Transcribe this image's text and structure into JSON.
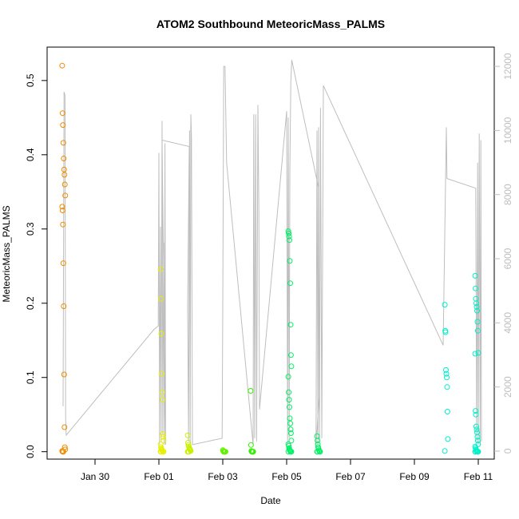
{
  "chart_data": {
    "type": "scatter",
    "title": "ATOM2 Southbound MeteoricMass_PALMS",
    "xlabel": "Date",
    "ylabel": "MeteoricMass_PALMS",
    "x_ticks": [
      "Jan 30",
      "Feb 01",
      "Feb 03",
      "Feb 05",
      "Feb 07",
      "Feb 09",
      "Feb 11"
    ],
    "x_tick_days": [
      30,
      32,
      34,
      36,
      38,
      40,
      42
    ],
    "xlim_days": [
      28.5,
      42.5
    ],
    "y_ticks": [
      "0.0",
      "0.1",
      "0.2",
      "0.3",
      "0.4",
      "0.5"
    ],
    "ylim": [
      -0.01,
      0.545
    ],
    "y2_ticks": [
      "0",
      "2000",
      "4000",
      "6000",
      "8000",
      "10000",
      "12000"
    ],
    "y2lim": [
      -250,
      12600
    ],
    "grid": false,
    "colors": {
      "altitude_line": "#bebebe",
      "right_axis": "#bebebe",
      "axis": "#000000",
      "flight_colors": [
        "#f08c00",
        "#e6f000",
        "#c8f000",
        "#64f000",
        "#32f000",
        "#00f064",
        "#00f0c8"
      ]
    },
    "series": [
      {
        "flight": 1,
        "color": "#f08c00",
        "day": 29.02,
        "values": [
          0.52,
          0.456,
          0.44,
          0.416,
          0.395,
          0.38,
          0.373,
          0.36,
          0.345,
          0.33,
          0.325,
          0.306,
          0.254,
          0.196,
          0.104,
          0.033,
          0.006,
          0.003,
          0.001,
          0.0,
          0.0,
          0.0
        ]
      },
      {
        "flight": 2,
        "color": "#e6f000",
        "day": 32.1,
        "values": [
          0.246,
          0.206,
          0.159,
          0.105,
          0.08,
          0.07,
          0.024,
          0.02,
          0.015,
          0.01,
          0.006,
          0.004,
          0.003,
          0.002,
          0.001,
          0.0,
          0.0,
          0.0,
          0.0,
          0.0
        ]
      },
      {
        "flight": 3,
        "color": "#c8f000",
        "day": 32.95,
        "values": [
          0.022,
          0.012,
          0.009,
          0.007,
          0.005,
          0.004,
          0.003,
          0.002,
          0.001,
          0.0,
          0.0,
          0.0,
          0.0
        ]
      },
      {
        "flight": 4,
        "color": "#64f000",
        "day": 34.05,
        "values": [
          0.002,
          0.001,
          0.0,
          0.0,
          0.0,
          0.0,
          0.0,
          0.0
        ]
      },
      {
        "flight": 5,
        "color": "#32f000",
        "day": 34.92,
        "values": [
          0.082,
          0.009,
          0.001,
          0.0,
          0.0,
          0.0,
          0.0,
          0.0
        ]
      },
      {
        "flight": 6,
        "color": "#00f064",
        "day": 36.1,
        "values": [
          0.297,
          0.294,
          0.29,
          0.285,
          0.257,
          0.227,
          0.171,
          0.13,
          0.115,
          0.101,
          0.08,
          0.07,
          0.06,
          0.045,
          0.038,
          0.03,
          0.025,
          0.015,
          0.01,
          0.008,
          0.005,
          0.003,
          0.002,
          0.001,
          0.0,
          0.0,
          0.0,
          0.0
        ]
      },
      {
        "flight": 7,
        "color": "#00f064",
        "day": 37.0,
        "values": [
          0.021,
          0.015,
          0.01,
          0.006,
          0.004,
          0.002,
          0.001,
          0.0,
          0.0,
          0.0,
          0.0
        ]
      },
      {
        "flight": 8,
        "color": "#00f0c8",
        "day": 41.0,
        "values": [
          0.198,
          0.163,
          0.161,
          0.11,
          0.105,
          0.1,
          0.087,
          0.054,
          0.017,
          0.001
        ]
      },
      {
        "flight": 9,
        "color": "#00f0c8",
        "day": 41.95,
        "values": [
          0.237,
          0.22,
          0.206,
          0.2,
          0.195,
          0.19,
          0.175,
          0.163,
          0.133,
          0.132,
          0.055,
          0.05,
          0.034,
          0.03,
          0.026,
          0.02,
          0.015,
          0.01,
          0.007,
          0.005,
          0.003,
          0.002,
          0.001,
          0.0,
          0.0,
          0.0,
          0.0,
          0.0,
          0.0
        ]
      }
    ],
    "altitude_line": [
      [
        29.0,
        1400
      ],
      [
        29.03,
        11200
      ],
      [
        29.06,
        11100
      ],
      [
        29.08,
        1000
      ],
      [
        29.1,
        500
      ],
      [
        31.85,
        3800
      ],
      [
        31.98,
        3900
      ],
      [
        32.0,
        9300
      ],
      [
        32.02,
        200
      ],
      [
        32.05,
        7000
      ],
      [
        32.07,
        300
      ],
      [
        32.1,
        10300
      ],
      [
        32.12,
        500
      ],
      [
        32.15,
        6500
      ],
      [
        32.17,
        200
      ],
      [
        32.19,
        9600
      ],
      [
        32.21,
        200
      ],
      [
        32.1,
        9700
      ],
      [
        32.95,
        9500
      ],
      [
        32.9,
        4500
      ],
      [
        32.93,
        300
      ],
      [
        32.96,
        10000
      ],
      [
        32.98,
        200
      ],
      [
        33.0,
        10500
      ],
      [
        33.02,
        9800
      ],
      [
        33.05,
        200
      ],
      [
        33.98,
        400
      ],
      [
        34.0,
        4500
      ],
      [
        34.03,
        12000
      ],
      [
        34.07,
        12000
      ],
      [
        34.1,
        10200
      ],
      [
        34.12,
        9000
      ],
      [
        34.95,
        200
      ],
      [
        34.97,
        10500
      ],
      [
        35.0,
        400
      ],
      [
        35.03,
        10500
      ],
      [
        35.06,
        300
      ],
      [
        35.1,
        10800
      ],
      [
        35.13,
        7500
      ],
      [
        35.15,
        1300
      ],
      [
        36.0,
        10600
      ],
      [
        36.03,
        200
      ],
      [
        36.05,
        10400
      ],
      [
        36.08,
        400
      ],
      [
        36.1,
        8700
      ],
      [
        36.13,
        11500
      ],
      [
        36.16,
        12200
      ],
      [
        37.0,
        8200
      ],
      [
        37.02,
        1700
      ],
      [
        36.92,
        200
      ],
      [
        36.95,
        10000
      ],
      [
        36.98,
        200
      ],
      [
        37.0,
        10100
      ],
      [
        37.03,
        300
      ],
      [
        37.06,
        10700
      ],
      [
        37.1,
        400
      ],
      [
        37.15,
        11400
      ],
      [
        40.9,
        3300
      ],
      [
        41.0,
        10100
      ],
      [
        41.02,
        8500
      ],
      [
        41.92,
        8200
      ],
      [
        41.95,
        300
      ],
      [
        41.98,
        9000
      ],
      [
        42.0,
        200
      ],
      [
        42.03,
        9900
      ],
      [
        42.06,
        200
      ],
      [
        42.08,
        9700
      ],
      [
        42.1,
        300
      ]
    ]
  }
}
